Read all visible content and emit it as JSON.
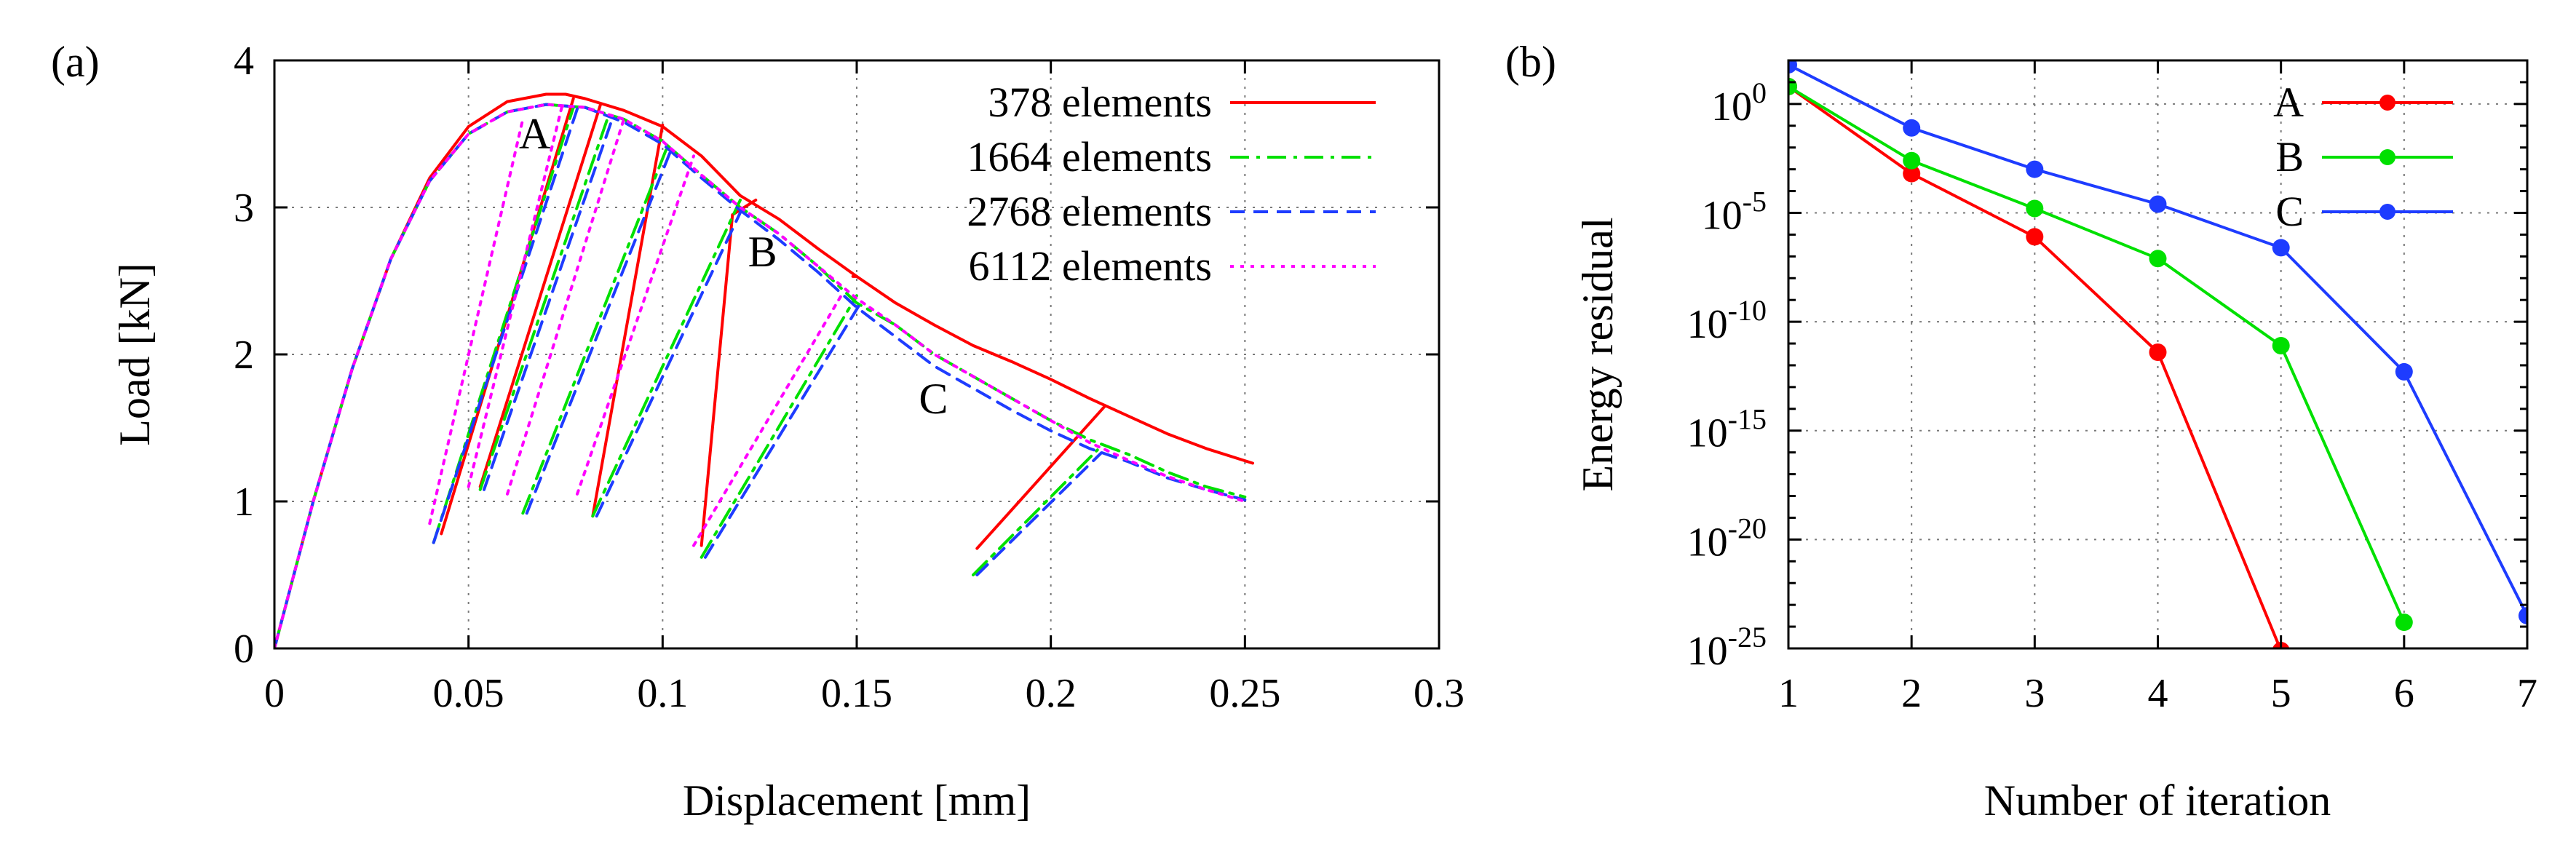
{
  "chart_data": [
    {
      "id": "a",
      "type": "line",
      "panel_label": "(a)",
      "xlabel": "Displacement [mm]",
      "ylabel": "Load [kN]",
      "xlim": [
        0,
        0.3
      ],
      "ylim": [
        0,
        4
      ],
      "xticks": [
        0,
        0.05,
        0.1,
        0.15,
        0.2,
        0.25,
        0.3
      ],
      "xtick_labels": [
        "0",
        "0.05",
        "0.1",
        "0.15",
        "0.2",
        "0.25",
        "0.3"
      ],
      "yticks": [
        0,
        1,
        2,
        3,
        4
      ],
      "ytick_labels": [
        "0",
        "1",
        "2",
        "3",
        "4"
      ],
      "grid": true,
      "legend_position": "top-right",
      "annotations": [
        {
          "text": "A",
          "x": 0.063,
          "y": 3.4
        },
        {
          "text": "B",
          "x": 0.122,
          "y": 2.6
        },
        {
          "text": "C",
          "x": 0.166,
          "y": 1.6
        }
      ],
      "series": [
        {
          "name": "378 elements",
          "color": "#ff0000",
          "style": "solid",
          "envelope": [
            [
              0,
              0
            ],
            [
              0.01,
              1.0
            ],
            [
              0.02,
              1.9
            ],
            [
              0.03,
              2.65
            ],
            [
              0.04,
              3.2
            ],
            [
              0.05,
              3.55
            ],
            [
              0.06,
              3.72
            ],
            [
              0.07,
              3.77
            ],
            [
              0.075,
              3.77
            ],
            [
              0.08,
              3.74
            ],
            [
              0.09,
              3.66
            ],
            [
              0.1,
              3.55
            ],
            [
              0.11,
              3.35
            ],
            [
              0.12,
              3.08
            ],
            [
              0.13,
              2.92
            ],
            [
              0.14,
              2.72
            ],
            [
              0.15,
              2.53
            ],
            [
              0.16,
              2.35
            ],
            [
              0.17,
              2.2
            ],
            [
              0.18,
              2.06
            ],
            [
              0.19,
              1.95
            ],
            [
              0.2,
              1.83
            ],
            [
              0.21,
              1.7
            ],
            [
              0.22,
              1.58
            ],
            [
              0.23,
              1.46
            ],
            [
              0.24,
              1.36
            ],
            [
              0.252,
              1.26
            ]
          ],
          "unloading": [
            [
              [
                0.043,
                0.78
              ],
              [
                0.077,
                3.74
              ]
            ],
            [
              [
                0.053,
                1.1
              ],
              [
                0.084,
                3.7
              ]
            ],
            [
              [
                0.082,
                0.9
              ],
              [
                0.1,
                3.56
              ]
            ],
            [
              [
                0.11,
                0.7
              ],
              [
                0.118,
                2.95
              ],
              [
                0.124,
                3.05
              ]
            ],
            [
              [
                0.149,
                2.53
              ],
              [
                0.15,
                2.53
              ]
            ],
            [
              [
                0.181,
                0.68
              ],
              [
                0.214,
                1.65
              ]
            ]
          ]
        },
        {
          "name": "1664 elements",
          "color": "#00e000",
          "style": "dashdot",
          "envelope": [
            [
              0,
              0
            ],
            [
              0.01,
              1.0
            ],
            [
              0.02,
              1.9
            ],
            [
              0.03,
              2.65
            ],
            [
              0.04,
              3.18
            ],
            [
              0.05,
              3.5
            ],
            [
              0.06,
              3.65
            ],
            [
              0.07,
              3.7
            ],
            [
              0.08,
              3.68
            ],
            [
              0.09,
              3.6
            ],
            [
              0.1,
              3.45
            ],
            [
              0.11,
              3.22
            ],
            [
              0.12,
              3.0
            ],
            [
              0.13,
              2.82
            ],
            [
              0.14,
              2.6
            ],
            [
              0.15,
              2.35
            ],
            [
              0.16,
              2.2
            ],
            [
              0.17,
              2.0
            ],
            [
              0.18,
              1.85
            ],
            [
              0.19,
              1.7
            ],
            [
              0.2,
              1.55
            ],
            [
              0.21,
              1.42
            ],
            [
              0.22,
              1.32
            ],
            [
              0.23,
              1.2
            ],
            [
              0.24,
              1.1
            ],
            [
              0.25,
              1.03
            ]
          ],
          "unloading": [
            [
              [
                0.041,
                0.72
              ],
              [
                0.077,
                3.68
              ]
            ],
            [
              [
                0.053,
                1.08
              ],
              [
                0.086,
                3.62
              ]
            ],
            [
              [
                0.064,
                0.92
              ],
              [
                0.101,
                3.4
              ]
            ],
            [
              [
                0.082,
                0.9
              ],
              [
                0.12,
                3.05
              ]
            ],
            [
              [
                0.11,
                0.62
              ],
              [
                0.15,
                2.4
              ]
            ],
            [
              [
                0.18,
                0.5
              ],
              [
                0.212,
                1.35
              ]
            ]
          ]
        },
        {
          "name": "2768 elements",
          "color": "#1e3cff",
          "style": "dashed",
          "envelope": [
            [
              0,
              0
            ],
            [
              0.01,
              1.0
            ],
            [
              0.02,
              1.9
            ],
            [
              0.03,
              2.65
            ],
            [
              0.04,
              3.18
            ],
            [
              0.05,
              3.5
            ],
            [
              0.06,
              3.65
            ],
            [
              0.07,
              3.7
            ],
            [
              0.08,
              3.68
            ],
            [
              0.09,
              3.58
            ],
            [
              0.1,
              3.43
            ],
            [
              0.11,
              3.2
            ],
            [
              0.12,
              2.98
            ],
            [
              0.13,
              2.78
            ],
            [
              0.14,
              2.56
            ],
            [
              0.15,
              2.32
            ],
            [
              0.16,
              2.12
            ],
            [
              0.17,
              1.92
            ],
            [
              0.18,
              1.77
            ],
            [
              0.19,
              1.62
            ],
            [
              0.2,
              1.48
            ],
            [
              0.21,
              1.36
            ],
            [
              0.22,
              1.27
            ],
            [
              0.23,
              1.16
            ],
            [
              0.24,
              1.08
            ],
            [
              0.25,
              1.01
            ]
          ],
          "unloading": [
            [
              [
                0.041,
                0.72
              ],
              [
                0.078,
                3.67
              ]
            ],
            [
              [
                0.054,
                1.08
              ],
              [
                0.087,
                3.6
              ]
            ],
            [
              [
                0.065,
                0.92
              ],
              [
                0.102,
                3.38
              ]
            ],
            [
              [
                0.083,
                0.9
              ],
              [
                0.121,
                3.02
              ]
            ],
            [
              [
                0.111,
                0.62
              ],
              [
                0.151,
                2.35
              ]
            ],
            [
              [
                0.181,
                0.5
              ],
              [
                0.213,
                1.33
              ]
            ]
          ]
        },
        {
          "name": "6112 elements",
          "color": "#ff00ff",
          "style": "dotted",
          "envelope": [
            [
              0,
              0
            ],
            [
              0.01,
              1.0
            ],
            [
              0.02,
              1.9
            ],
            [
              0.03,
              2.65
            ],
            [
              0.04,
              3.18
            ],
            [
              0.05,
              3.5
            ],
            [
              0.06,
              3.65
            ],
            [
              0.07,
              3.7
            ],
            [
              0.08,
              3.68
            ],
            [
              0.09,
              3.6
            ],
            [
              0.1,
              3.45
            ],
            [
              0.11,
              3.22
            ],
            [
              0.12,
              3.0
            ],
            [
              0.13,
              2.82
            ],
            [
              0.14,
              2.6
            ],
            [
              0.15,
              2.38
            ],
            [
              0.16,
              2.2
            ],
            [
              0.17,
              2.0
            ],
            [
              0.18,
              1.85
            ],
            [
              0.19,
              1.7
            ],
            [
              0.2,
              1.55
            ],
            [
              0.21,
              1.4
            ],
            [
              0.22,
              1.28
            ],
            [
              0.23,
              1.17
            ],
            [
              0.24,
              1.08
            ],
            [
              0.25,
              1.0
            ]
          ],
          "unloading": [
            [
              [
                0.04,
                0.85
              ],
              [
                0.064,
                3.6
              ]
            ],
            [
              [
                0.05,
                1.1
              ],
              [
                0.074,
                3.68
              ]
            ],
            [
              [
                0.06,
                1.05
              ],
              [
                0.09,
                3.6
              ]
            ],
            [
              [
                0.078,
                1.05
              ],
              [
                0.108,
                3.35
              ]
            ],
            [
              [
                0.108,
                0.7
              ],
              [
                0.146,
                2.4
              ]
            ]
          ]
        }
      ]
    },
    {
      "id": "b",
      "type": "line",
      "panel_label": "(b)",
      "xlabel": "Number of iteration",
      "ylabel": "Energy residual",
      "yscale": "log",
      "xlim": [
        1,
        7
      ],
      "ylim_exponent": [
        -25,
        2
      ],
      "xticks": [
        1,
        2,
        3,
        4,
        5,
        6,
        7
      ],
      "xtick_labels": [
        "1",
        "2",
        "3",
        "4",
        "5",
        "6",
        "7"
      ],
      "ytick_exponents": [
        -25,
        -20,
        -15,
        -10,
        -5,
        0
      ],
      "ytick_base": "10",
      "ytick_exponent_labels": [
        "-25",
        "-20",
        "-15",
        "-10",
        "-5",
        "0"
      ],
      "grid": true,
      "legend_position": "top-right",
      "series": [
        {
          "name": "A",
          "color": "#ff0000",
          "x": [
            1,
            2,
            3,
            4,
            5
          ],
          "log10_values": [
            0.8,
            -3.2,
            -6.1,
            -11.4,
            -25.1
          ]
        },
        {
          "name": "B",
          "color": "#00e000",
          "x": [
            1,
            2,
            3,
            4,
            5,
            6
          ],
          "log10_values": [
            0.8,
            -2.6,
            -4.8,
            -7.1,
            -11.1,
            -23.8
          ]
        },
        {
          "name": "C",
          "color": "#1e3cff",
          "x": [
            1,
            2,
            3,
            4,
            5,
            6,
            7
          ],
          "log10_values": [
            1.8,
            -1.1,
            -3.0,
            -4.6,
            -6.6,
            -12.3,
            -23.5
          ]
        }
      ]
    }
  ]
}
